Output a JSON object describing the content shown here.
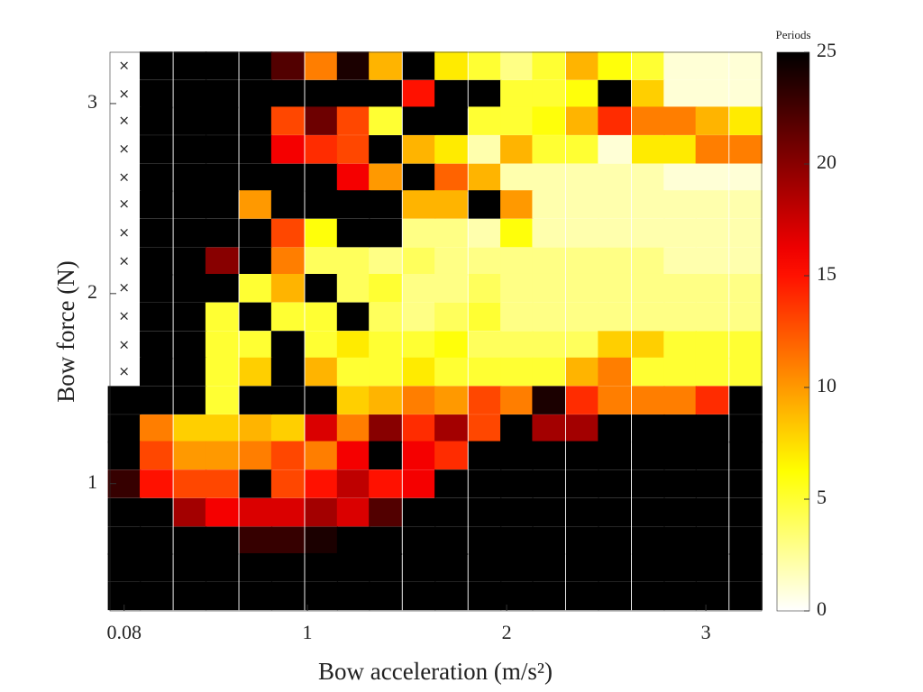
{
  "chart_data": {
    "type": "heatmap",
    "x_label": "Bow acceleration (m/s²)",
    "y_label": "Bow force (N)",
    "colorbar_label": "Periods",
    "null_label": "×",
    "colormap": "hot_reversed",
    "x": [
      0.08,
      0.24,
      0.41,
      0.57,
      0.74,
      0.9,
      1.07,
      1.23,
      1.39,
      1.56,
      1.72,
      1.89,
      2.05,
      2.21,
      2.38,
      2.54,
      2.71,
      2.87,
      3.03,
      3.2
    ],
    "y": [
      3.2,
      3.05,
      2.91,
      2.76,
      2.61,
      2.47,
      2.32,
      2.17,
      2.03,
      1.88,
      1.73,
      1.59,
      1.44,
      1.29,
      1.15,
      1.0,
      0.85,
      0.7,
      0.56,
      0.41
    ],
    "z": [
      [
        null,
        25,
        25,
        25,
        25,
        22,
        11,
        24,
        9,
        25,
        7,
        5,
        3,
        5,
        9,
        6,
        5,
        1,
        1,
        1
      ],
      [
        null,
        25,
        25,
        25,
        25,
        25,
        25,
        25,
        25,
        15,
        25,
        25,
        5,
        5,
        6,
        25,
        8,
        1,
        1,
        1
      ],
      [
        null,
        25,
        25,
        25,
        25,
        13,
        21,
        13,
        5,
        25,
        25,
        5,
        5,
        6,
        9,
        14,
        11,
        11,
        9,
        7
      ],
      [
        null,
        25,
        25,
        25,
        25,
        16,
        14,
        13,
        25,
        9,
        7,
        2,
        9,
        5,
        5,
        1,
        7,
        7,
        11,
        11
      ],
      [
        null,
        25,
        25,
        25,
        25,
        25,
        25,
        16,
        10,
        25,
        12,
        9,
        2,
        2,
        2,
        2,
        2,
        1,
        1,
        1
      ],
      [
        null,
        25,
        25,
        25,
        10,
        25,
        25,
        25,
        25,
        9,
        9,
        25,
        10,
        2,
        2,
        2,
        2,
        2,
        2,
        2
      ],
      [
        null,
        25,
        25,
        25,
        25,
        13,
        6,
        25,
        25,
        3,
        3,
        2,
        6,
        2,
        2,
        2,
        2,
        2,
        2,
        2
      ],
      [
        null,
        25,
        25,
        20,
        25,
        11,
        4,
        4,
        3,
        4,
        3,
        3,
        3,
        3,
        3,
        3,
        3,
        2,
        2,
        2
      ],
      [
        null,
        25,
        25,
        25,
        5,
        9,
        25,
        4,
        5,
        3,
        3,
        4,
        3,
        3,
        3,
        3,
        3,
        3,
        3,
        3
      ],
      [
        null,
        25,
        25,
        5,
        25,
        5,
        5,
        25,
        4,
        3,
        4,
        5,
        3,
        3,
        3,
        3,
        3,
        3,
        3,
        3
      ],
      [
        null,
        25,
        25,
        5,
        5,
        25,
        5,
        7,
        5,
        5,
        6,
        4,
        4,
        4,
        4,
        8,
        8,
        5,
        5,
        5
      ],
      [
        null,
        25,
        25,
        5,
        8,
        25,
        9,
        5,
        5,
        7,
        5,
        5,
        5,
        5,
        9,
        11,
        5,
        5,
        5,
        5
      ],
      [
        25,
        25,
        25,
        5,
        25,
        25,
        25,
        8,
        9,
        11,
        10,
        13,
        11,
        24,
        14,
        11,
        11,
        11,
        14,
        25
      ],
      [
        25,
        11,
        8,
        8,
        9,
        8,
        17,
        11,
        20,
        14,
        19,
        13,
        25,
        19,
        19,
        25,
        25,
        25,
        25,
        25
      ],
      [
        25,
        13,
        10,
        10,
        11,
        13,
        11,
        16,
        25,
        16,
        14,
        25,
        25,
        25,
        25,
        25,
        25,
        25,
        25,
        25
      ],
      [
        23,
        15,
        13,
        13,
        25,
        13,
        15,
        18,
        15,
        16,
        25,
        25,
        25,
        25,
        25,
        25,
        25,
        25,
        25,
        25
      ],
      [
        25,
        25,
        19,
        16,
        17,
        17,
        19,
        17,
        22,
        25,
        25,
        25,
        25,
        25,
        25,
        25,
        25,
        25,
        25,
        25
      ],
      [
        25,
        25,
        25,
        25,
        23,
        23,
        24,
        25,
        25,
        25,
        25,
        25,
        25,
        25,
        25,
        25,
        25,
        25,
        25,
        25
      ],
      [
        25,
        25,
        25,
        25,
        25,
        25,
        25,
        25,
        25,
        25,
        25,
        25,
        25,
        25,
        25,
        25,
        25,
        25,
        25,
        25
      ],
      [
        25,
        25,
        25,
        25,
        25,
        25,
        25,
        25,
        25,
        25,
        25,
        25,
        25,
        25,
        25,
        25,
        25,
        25,
        25,
        25
      ]
    ],
    "xlim": [
      0.009,
      3.28
    ],
    "ylim": [
      0.33,
      3.27
    ],
    "xticks": [
      0.08,
      1,
      2,
      3
    ],
    "yticks": [
      1,
      2,
      3
    ],
    "clim": [
      0,
      25
    ],
    "cticks": [
      0,
      5,
      10,
      15,
      20,
      25
    ]
  }
}
